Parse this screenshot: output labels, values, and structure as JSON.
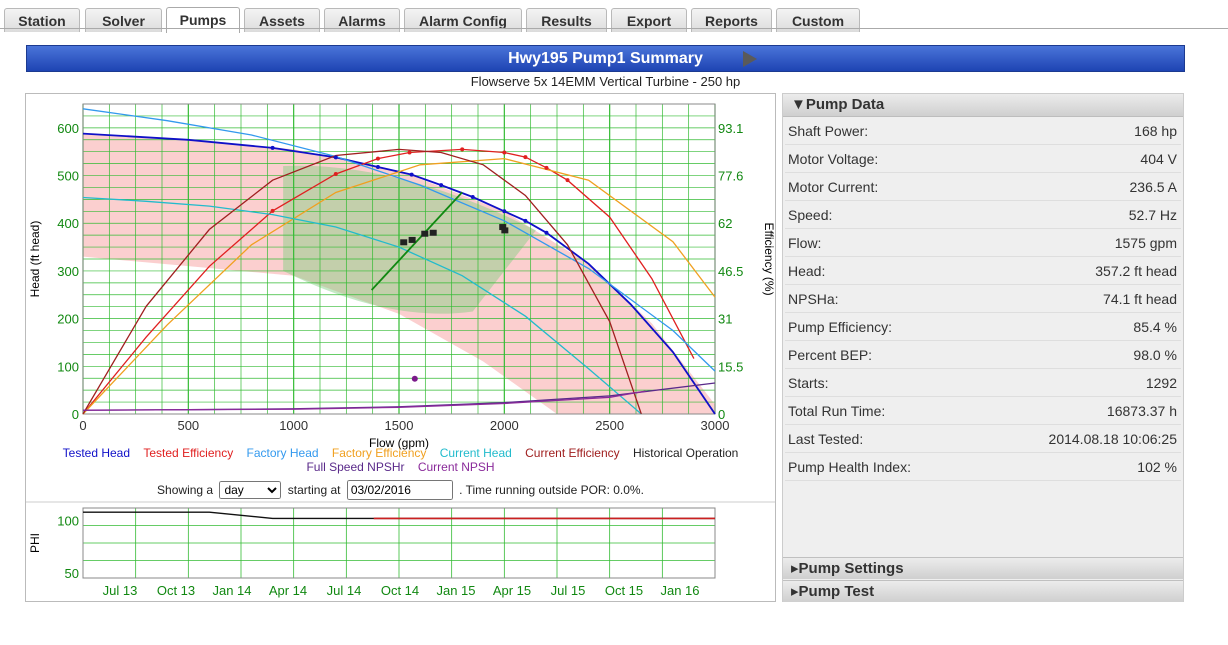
{
  "tabs": [
    {
      "label": "Station"
    },
    {
      "label": "Solver"
    },
    {
      "label": "Pumps"
    },
    {
      "label": "Assets"
    },
    {
      "label": "Alarms"
    },
    {
      "label": "Alarm Config"
    },
    {
      "label": "Results"
    },
    {
      "label": "Export"
    },
    {
      "label": "Reports"
    },
    {
      "label": "Custom"
    }
  ],
  "active_tab": "Pumps",
  "header": {
    "title": "Hwy195 Pump1 Summary",
    "subtitle": "Flowserve 5x 14EMM Vertical Turbine - 250 hp"
  },
  "colors": {
    "tested_head": "#1010c8",
    "tested_efficiency": "#e02020",
    "factory_head": "#3399ee",
    "factory_efficiency": "#f0a020",
    "current_head": "#22bbcc",
    "current_efficiency": "#a02020",
    "historical": "#222222",
    "npshr": "#5a2a8a",
    "npsh": "#8a2a9a",
    "grid": "#33bb33",
    "por": "#7fce7f",
    "aor": "#f7a8a8"
  },
  "chart_data": [
    {
      "type": "line",
      "xlabel": "Flow (gpm)",
      "ylabel": "Head (ft head)",
      "y2label": "Efficiency (%)",
      "xlim": [
        0,
        3000
      ],
      "ylim": [
        0,
        650
      ],
      "y2lim": [
        0,
        100.75
      ],
      "xticks": [
        0,
        500,
        1000,
        1500,
        2000,
        2500,
        3000
      ],
      "yticks": [
        0,
        100,
        200,
        300,
        400,
        500,
        600
      ],
      "y2ticks": [
        "0",
        "15.5",
        "31",
        "46.5",
        "62",
        "77.6",
        "93.1"
      ],
      "series": [
        {
          "name": "Tested Head",
          "axis": "head",
          "x": [
            0,
            500,
            900,
            1200,
            1400,
            1560,
            1700,
            1850,
            2000,
            2100,
            2200,
            2400,
            2600,
            2800,
            3000
          ],
          "y": [
            588,
            575,
            558,
            538,
            518,
            502,
            480,
            455,
            425,
            405,
            380,
            315,
            230,
            130,
            0
          ]
        },
        {
          "name": "Tested Efficiency",
          "axis": "eff",
          "x": [
            0,
            300,
            600,
            900,
            1200,
            1400,
            1550,
            1800,
            2000,
            2100,
            2200,
            2300,
            2500,
            2700,
            2900
          ],
          "y": [
            0,
            25,
            48,
            66,
            78,
            83,
            85,
            86,
            85,
            83.5,
            80,
            76,
            64,
            44,
            18
          ]
        },
        {
          "name": "Factory Head",
          "axis": "head",
          "x": [
            0,
            400,
            800,
            1200,
            1600,
            2000,
            2400,
            2800,
            3000
          ],
          "y": [
            640,
            615,
            585,
            540,
            480,
            405,
            305,
            175,
            90
          ]
        },
        {
          "name": "Factory Efficiency",
          "axis": "eff",
          "x": [
            0,
            400,
            800,
            1200,
            1600,
            2000,
            2400,
            2800,
            3000
          ],
          "y": [
            0,
            29,
            55,
            72,
            81,
            83,
            76,
            56,
            38
          ]
        },
        {
          "name": "Current Head",
          "axis": "head",
          "x": [
            0,
            300,
            600,
            900,
            1200,
            1500,
            1800,
            2100,
            2400,
            2650
          ],
          "y": [
            454,
            446,
            436,
            418,
            392,
            350,
            290,
            205,
            95,
            0
          ]
        },
        {
          "name": "Current Efficiency",
          "axis": "eff",
          "x": [
            0,
            300,
            600,
            900,
            1200,
            1500,
            1700,
            1900,
            2100,
            2300,
            2500,
            2650
          ],
          "y": [
            0,
            35,
            60,
            76,
            84,
            86,
            85,
            81,
            71,
            55,
            30,
            0
          ]
        },
        {
          "name": "Full Speed NPSHr",
          "axis": "head",
          "x": [
            0,
            500,
            1000,
            1500,
            2000,
            2500,
            3000
          ],
          "y": [
            8,
            9,
            11,
            15,
            24,
            38,
            65
          ]
        },
        {
          "name": "Current NPSH",
          "axis": "head",
          "x": [
            0,
            500,
            1000,
            1500,
            2000,
            2500,
            2670
          ],
          "y": [
            8,
            9,
            10,
            14,
            22,
            35,
            48
          ]
        }
      ],
      "por_band": {
        "x": [
          950,
          1450,
          2150
        ],
        "y": [
          300,
          245,
          380
        ],
        "y_upper": [
          520,
          505,
          385
        ]
      },
      "bep_line": {
        "x": [
          1370,
          1800
        ],
        "y": [
          260,
          465
        ]
      },
      "historical_points": {
        "x": [
          1520,
          1560,
          1620,
          1660,
          1990,
          2000
        ],
        "y": [
          360,
          365,
          378,
          380,
          392,
          385
        ]
      },
      "current_point": {
        "x": 1575,
        "y": 74
      }
    },
    {
      "type": "line",
      "ylabel": "PHI",
      "ylim": [
        45,
        112
      ],
      "yticks": [
        50,
        100
      ],
      "xticks": [
        "Jul 13",
        "Oct 13",
        "Jan 14",
        "Apr 14",
        "Jul 14",
        "Oct 14",
        "Jan 15",
        "Apr 15",
        "Jul 15",
        "Oct 15",
        "Jan 16"
      ],
      "series": [
        {
          "name": "Pump Health Index",
          "values": [
            108,
            108,
            108,
            102,
            102,
            102,
            102,
            102,
            102,
            102,
            102
          ]
        }
      ]
    }
  ],
  "legend": [
    "Tested Head",
    "Tested Efficiency",
    "Factory Head",
    "Factory Efficiency",
    "Current Head",
    "Current Efficiency",
    "Historical Operation",
    "Full Speed NPSHr",
    "Current NPSH"
  ],
  "controls": {
    "showing_label": "Showing a",
    "period": "day",
    "starting_label": "starting at",
    "date": "03/02/2016",
    "suffix": ". Time running outside POR: 0.0%."
  },
  "pump_data": {
    "title": "▼Pump Data",
    "rows": [
      {
        "label": "Shaft Power:",
        "value": "168 hp"
      },
      {
        "label": "Motor Voltage:",
        "value": "404 V"
      },
      {
        "label": "Motor Current:",
        "value": "236.5 A"
      },
      {
        "label": "Speed:",
        "value": "52.7 Hz"
      },
      {
        "label": "Flow:",
        "value": "1575 gpm"
      },
      {
        "label": "Head:",
        "value": "357.2 ft head"
      },
      {
        "label": "NPSHa:",
        "value": "74.1 ft head"
      },
      {
        "label": "Pump Efficiency:",
        "value": "85.4 %"
      },
      {
        "label": "Percent BEP:",
        "value": "98.0 %"
      },
      {
        "label": "Starts:",
        "value": "1292"
      },
      {
        "label": "Total Run Time:",
        "value": "16873.37 h"
      },
      {
        "label": "Last Tested:",
        "value": "2014.08.18 10:06:25"
      },
      {
        "label": "Pump Health Index:",
        "value": "102 %"
      }
    ]
  },
  "pump_settings": {
    "title": "▸Pump Settings"
  },
  "pump_test": {
    "title": "▸Pump Test"
  }
}
